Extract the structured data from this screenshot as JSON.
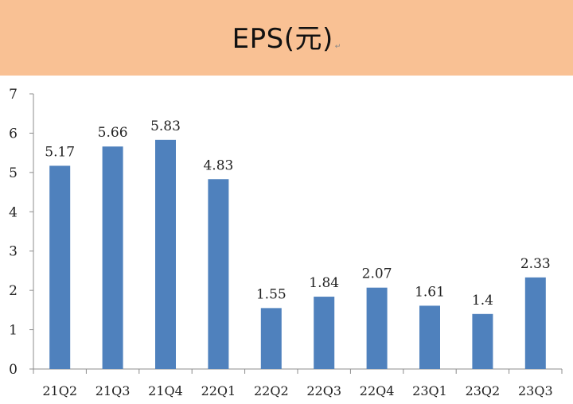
{
  "header": {
    "title": "EPS(元)",
    "trailing_mark": "↵"
  },
  "colors": {
    "title_background": "#f9c194",
    "bar": "#4f81bd",
    "axis": "#8c8c8c"
  },
  "chart_data": {
    "type": "bar",
    "title": "EPS(元)",
    "xlabel": "",
    "ylabel": "",
    "categories": [
      "21Q2",
      "21Q3",
      "21Q4",
      "22Q1",
      "22Q2",
      "22Q3",
      "22Q4",
      "23Q1",
      "23Q2",
      "23Q3"
    ],
    "values": [
      5.17,
      5.66,
      5.83,
      4.83,
      1.55,
      1.84,
      2.07,
      1.61,
      1.4,
      2.33
    ],
    "data_labels": [
      "5.17",
      "5.66",
      "5.83",
      "4.83",
      "1.55",
      "1.84",
      "2.07",
      "1.61",
      "1.4",
      "2.33"
    ],
    "ylim": [
      0,
      7
    ],
    "yticks": [
      0,
      1,
      2,
      3,
      4,
      5,
      6,
      7
    ],
    "grid": false,
    "legend": "none"
  }
}
